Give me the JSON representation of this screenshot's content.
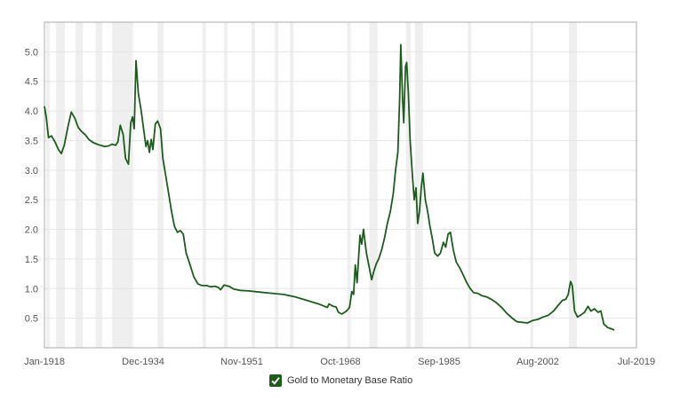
{
  "chart_data": {
    "type": "line",
    "title": "",
    "xlabel": "",
    "ylabel": "",
    "ylim": [
      0,
      5.5
    ],
    "y_ticks": [
      "0.5",
      "1.0",
      "1.5",
      "2.0",
      "2.5",
      "3.0",
      "3.5",
      "4.0",
      "4.5",
      "5.0"
    ],
    "x_tick_labels": [
      "Jan-1918",
      "Dec-1934",
      "Nov-1951",
      "Oct-1968",
      "Sep-1985",
      "Aug-2002",
      "Jul-2019"
    ],
    "x_range_years": [
      1918.0,
      2019.5
    ],
    "grid": true,
    "legend_position": "bottom-center",
    "recession_bands_years": [
      [
        1918.3,
        1918.9
      ],
      [
        1920.0,
        1921.5
      ],
      [
        1923.3,
        1924.6
      ],
      [
        1926.8,
        1927.9
      ],
      [
        1929.6,
        1933.2
      ],
      [
        1937.4,
        1938.4
      ],
      [
        1945.1,
        1945.7
      ],
      [
        1948.8,
        1949.4
      ],
      [
        1953.5,
        1954.1
      ],
      [
        1957.5,
        1958.1
      ],
      [
        1960.1,
        1960.7
      ],
      [
        1969.9,
        1970.5
      ],
      [
        1973.7,
        1975.1
      ],
      [
        1980.0,
        1980.8
      ],
      [
        1981.5,
        1982.9
      ],
      [
        1990.6,
        1991.2
      ],
      [
        2001.3,
        2001.8
      ],
      [
        2007.9,
        2009.3
      ]
    ],
    "series": [
      {
        "name": "Gold to Monetary Base Ratio",
        "color": "#1e5c1e",
        "points": [
          [
            1918.0,
            4.08
          ],
          [
            1918.3,
            3.9
          ],
          [
            1918.7,
            3.55
          ],
          [
            1919.2,
            3.58
          ],
          [
            1919.8,
            3.48
          ],
          [
            1920.4,
            3.35
          ],
          [
            1920.9,
            3.28
          ],
          [
            1921.4,
            3.42
          ],
          [
            1922.0,
            3.72
          ],
          [
            1922.6,
            3.98
          ],
          [
            1923.2,
            3.88
          ],
          [
            1923.8,
            3.72
          ],
          [
            1924.4,
            3.65
          ],
          [
            1925.0,
            3.6
          ],
          [
            1925.6,
            3.52
          ],
          [
            1926.3,
            3.47
          ],
          [
            1927.0,
            3.44
          ],
          [
            1927.6,
            3.42
          ],
          [
            1928.3,
            3.4
          ],
          [
            1929.0,
            3.41
          ],
          [
            1929.6,
            3.44
          ],
          [
            1930.2,
            3.42
          ],
          [
            1930.6,
            3.48
          ],
          [
            1931.0,
            3.76
          ],
          [
            1931.5,
            3.6
          ],
          [
            1931.9,
            3.2
          ],
          [
            1932.4,
            3.1
          ],
          [
            1932.8,
            3.8
          ],
          [
            1933.1,
            3.9
          ],
          [
            1933.4,
            3.7
          ],
          [
            1933.7,
            4.85
          ],
          [
            1934.1,
            4.3
          ],
          [
            1934.6,
            4.0
          ],
          [
            1935.0,
            3.7
          ],
          [
            1935.4,
            3.4
          ],
          [
            1935.7,
            3.5
          ],
          [
            1936.0,
            3.3
          ],
          [
            1936.3,
            3.52
          ],
          [
            1936.6,
            3.35
          ],
          [
            1937.0,
            3.78
          ],
          [
            1937.4,
            3.83
          ],
          [
            1937.9,
            3.7
          ],
          [
            1938.3,
            3.2
          ],
          [
            1938.8,
            2.9
          ],
          [
            1939.3,
            2.6
          ],
          [
            1939.8,
            2.3
          ],
          [
            1940.3,
            2.05
          ],
          [
            1940.8,
            1.95
          ],
          [
            1941.3,
            1.98
          ],
          [
            1941.8,
            1.92
          ],
          [
            1942.3,
            1.6
          ],
          [
            1942.9,
            1.42
          ],
          [
            1943.6,
            1.2
          ],
          [
            1944.3,
            1.08
          ],
          [
            1945.0,
            1.05
          ],
          [
            1945.8,
            1.05
          ],
          [
            1946.5,
            1.03
          ],
          [
            1947.2,
            1.04
          ],
          [
            1947.8,
            1.02
          ],
          [
            1948.2,
            0.98
          ],
          [
            1948.8,
            1.06
          ],
          [
            1949.6,
            1.04
          ],
          [
            1950.5,
            0.99
          ],
          [
            1951.5,
            0.97
          ],
          [
            1953.0,
            0.96
          ],
          [
            1955.0,
            0.94
          ],
          [
            1957.0,
            0.92
          ],
          [
            1959.0,
            0.9
          ],
          [
            1961.0,
            0.86
          ],
          [
            1963.0,
            0.8
          ],
          [
            1965.0,
            0.74
          ],
          [
            1966.5,
            0.68
          ],
          [
            1966.8,
            0.74
          ],
          [
            1967.5,
            0.7
          ],
          [
            1968.0,
            0.69
          ],
          [
            1968.4,
            0.6
          ],
          [
            1969.0,
            0.57
          ],
          [
            1969.8,
            0.62
          ],
          [
            1970.3,
            0.68
          ],
          [
            1970.7,
            0.95
          ],
          [
            1971.0,
            0.9
          ],
          [
            1971.3,
            1.4
          ],
          [
            1971.6,
            1.1
          ],
          [
            1972.1,
            1.9
          ],
          [
            1972.4,
            1.75
          ],
          [
            1972.7,
            2.0
          ],
          [
            1973.2,
            1.6
          ],
          [
            1973.7,
            1.35
          ],
          [
            1974.1,
            1.15
          ],
          [
            1974.5,
            1.3
          ],
          [
            1974.9,
            1.42
          ],
          [
            1975.3,
            1.5
          ],
          [
            1975.8,
            1.65
          ],
          [
            1976.3,
            1.85
          ],
          [
            1976.8,
            2.1
          ],
          [
            1977.3,
            2.3
          ],
          [
            1977.8,
            2.6
          ],
          [
            1978.2,
            3.0
          ],
          [
            1978.6,
            3.3
          ],
          [
            1978.9,
            4.2
          ],
          [
            1979.1,
            5.12
          ],
          [
            1979.4,
            4.2
          ],
          [
            1979.6,
            3.8
          ],
          [
            1979.9,
            4.75
          ],
          [
            1980.1,
            4.82
          ],
          [
            1980.4,
            4.3
          ],
          [
            1980.7,
            3.5
          ],
          [
            1981.1,
            2.9
          ],
          [
            1981.4,
            2.5
          ],
          [
            1981.7,
            2.7
          ],
          [
            1982.0,
            2.1
          ],
          [
            1982.3,
            2.3
          ],
          [
            1982.6,
            2.7
          ],
          [
            1982.9,
            2.95
          ],
          [
            1983.3,
            2.5
          ],
          [
            1983.7,
            2.3
          ],
          [
            1984.1,
            2.05
          ],
          [
            1984.5,
            1.85
          ],
          [
            1984.9,
            1.6
          ],
          [
            1985.4,
            1.55
          ],
          [
            1985.9,
            1.6
          ],
          [
            1986.4,
            1.78
          ],
          [
            1986.8,
            1.7
          ],
          [
            1987.2,
            1.92
          ],
          [
            1987.6,
            1.95
          ],
          [
            1988.1,
            1.65
          ],
          [
            1988.6,
            1.45
          ],
          [
            1989.2,
            1.35
          ],
          [
            1989.7,
            1.25
          ],
          [
            1990.4,
            1.1
          ],
          [
            1991.0,
            1.0
          ],
          [
            1991.6,
            0.93
          ],
          [
            1992.3,
            0.92
          ],
          [
            1993.0,
            0.88
          ],
          [
            1993.8,
            0.86
          ],
          [
            1994.6,
            0.82
          ],
          [
            1995.5,
            0.76
          ],
          [
            1996.4,
            0.68
          ],
          [
            1997.3,
            0.58
          ],
          [
            1998.2,
            0.5
          ],
          [
            1999.0,
            0.44
          ],
          [
            1999.9,
            0.43
          ],
          [
            2000.8,
            0.42
          ],
          [
            2001.7,
            0.46
          ],
          [
            2002.6,
            0.48
          ],
          [
            2003.5,
            0.52
          ],
          [
            2004.4,
            0.55
          ],
          [
            2005.3,
            0.62
          ],
          [
            2006.1,
            0.72
          ],
          [
            2006.8,
            0.8
          ],
          [
            2007.4,
            0.82
          ],
          [
            2007.8,
            0.9
          ],
          [
            2008.2,
            1.12
          ],
          [
            2008.5,
            1.05
          ],
          [
            2008.9,
            0.62
          ],
          [
            2009.4,
            0.52
          ],
          [
            2009.9,
            0.55
          ],
          [
            2010.6,
            0.6
          ],
          [
            2011.2,
            0.7
          ],
          [
            2011.7,
            0.62
          ],
          [
            2012.3,
            0.66
          ],
          [
            2012.9,
            0.6
          ],
          [
            2013.4,
            0.62
          ],
          [
            2013.9,
            0.4
          ],
          [
            2014.6,
            0.34
          ],
          [
            2015.2,
            0.32
          ],
          [
            2015.7,
            0.3
          ]
        ]
      }
    ]
  },
  "legend": {
    "items": [
      {
        "label": "Gold to Monetary Base Ratio",
        "checked": true,
        "icon": "checkbox-checked-icon",
        "color": "#1e5c1e"
      }
    ]
  },
  "colors": {
    "line": "#1e5c1e",
    "recession_band": "#efefef",
    "gridline": "#e6e6e6",
    "axis": "#999999",
    "tick_text": "#555555"
  }
}
